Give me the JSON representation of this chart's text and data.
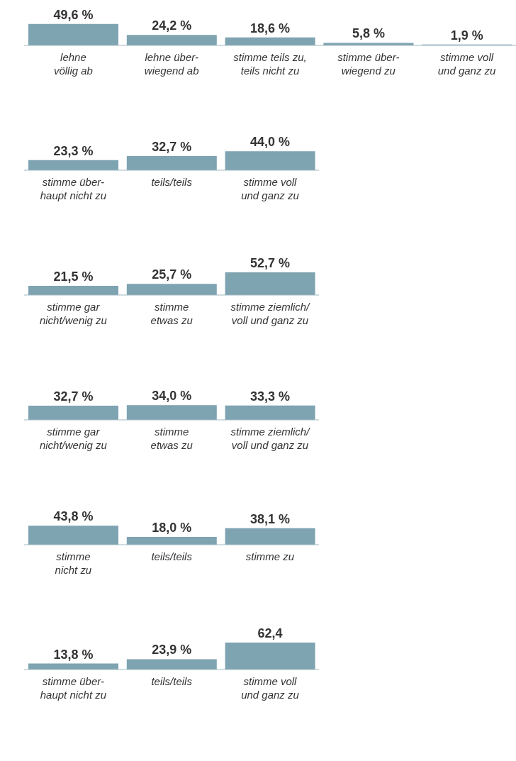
{
  "chart_data": [
    {
      "type": "bar",
      "categories": [
        "lehne\nvöllig ab",
        "lehne über-\nwiegend ab",
        "stimme teils zu,\nteils nicht zu",
        "stimme über-\nwiegend zu",
        "stimme voll\nund ganz zu"
      ],
      "values": [
        49.6,
        24.2,
        18.6,
        5.8,
        1.9
      ],
      "color": "#7ea3b1",
      "value_labels": [
        "49,6 %",
        "24,2 %",
        "18,6 %",
        "5,8 %",
        "1,9 %"
      ]
    },
    {
      "type": "bar",
      "categories": [
        "stimme über-\nhaupt nicht zu",
        "teils/teils",
        "stimme voll\nund ganz zu"
      ],
      "values": [
        23.3,
        32.7,
        44.0
      ],
      "color": "#7ea3b1",
      "value_labels": [
        "23,3 %",
        "32,7 %",
        "44,0 %"
      ]
    },
    {
      "type": "bar",
      "categories": [
        "stimme gar\nnicht/wenig zu",
        "stimme\netwas zu",
        "stimme ziemlich/\nvoll und ganz zu"
      ],
      "values": [
        21.5,
        25.7,
        52.7
      ],
      "color": "#7ea3b1",
      "value_labels": [
        "21,5 %",
        "25,7 %",
        "52,7 %"
      ]
    },
    {
      "type": "bar",
      "categories": [
        "stimme gar\nnicht/wenig zu",
        "stimme\netwas zu",
        "stimme ziemlich/\nvoll und ganz zu"
      ],
      "values": [
        32.7,
        34.0,
        33.3
      ],
      "color": "#7ea3b1",
      "value_labels": [
        "32,7 %",
        "34,0 %",
        "33,3 %"
      ]
    },
    {
      "type": "bar",
      "categories": [
        "stimme\nnicht zu",
        "teils/teils",
        "stimme zu"
      ],
      "values": [
        43.8,
        18.0,
        38.1
      ],
      "color": "#7ea3b1",
      "value_labels": [
        "43,8 %",
        "18,0 %",
        "38,1 %"
      ]
    },
    {
      "type": "bar",
      "categories": [
        "stimme über-\nhaupt nicht zu",
        "teils/teils",
        "stimme voll\nund ganz zu"
      ],
      "values": [
        13.8,
        23.9,
        62.4
      ],
      "color": "#7ea3b1",
      "value_labels": [
        "13,8 %",
        "23,9 %",
        "62,4"
      ]
    }
  ]
}
